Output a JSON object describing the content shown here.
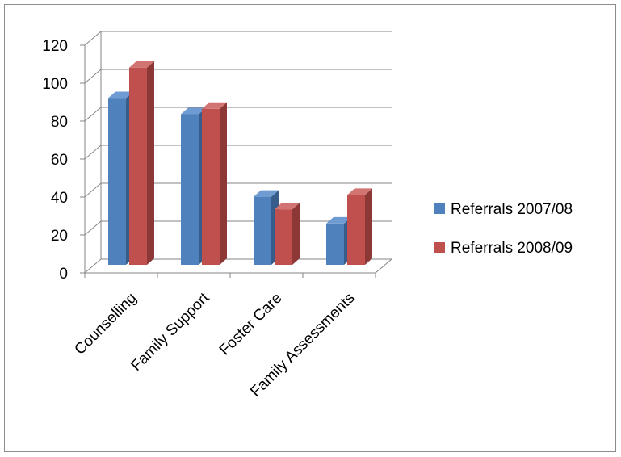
{
  "chart_data": {
    "type": "bar",
    "categories": [
      "Counselling",
      "Family Support",
      "Foster Care",
      "Family Assessments"
    ],
    "series": [
      {
        "name": "Referrals 2007/08",
        "values": [
          93,
          84,
          38,
          23
        ],
        "color": "#4f81bd",
        "side_color": "#385d8a",
        "top_color": "#6f9bd3"
      },
      {
        "name": "Referrals 2008/09",
        "values": [
          110,
          87,
          31,
          39
        ],
        "color": "#c0504d",
        "side_color": "#8c3836",
        "top_color": "#d27572"
      }
    ],
    "y_ticks": [
      "0",
      "20",
      "40",
      "60",
      "80",
      "100",
      "120"
    ],
    "ylim": [
      0,
      120
    ],
    "grid": true,
    "legend_position": "right",
    "title": "",
    "xlabel": "",
    "ylabel": ""
  }
}
